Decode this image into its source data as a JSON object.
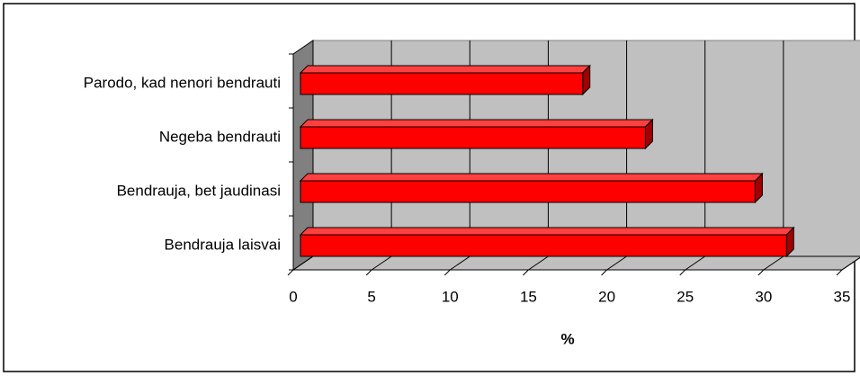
{
  "chart_data": {
    "type": "bar3d_horizontal",
    "categories": [
      "Parodo, kad nenori bendrauti",
      "Negeba bendrauti",
      "Bendrauja, bet jaudinasi",
      "Bendrauja laisvai"
    ],
    "values": [
      18,
      22,
      29,
      31
    ],
    "color": "#ff0000",
    "xlabel": "%",
    "xlim": [
      0,
      35
    ],
    "xticks": [
      0,
      5,
      10,
      15,
      20,
      25,
      30,
      35
    ],
    "grid": true
  }
}
